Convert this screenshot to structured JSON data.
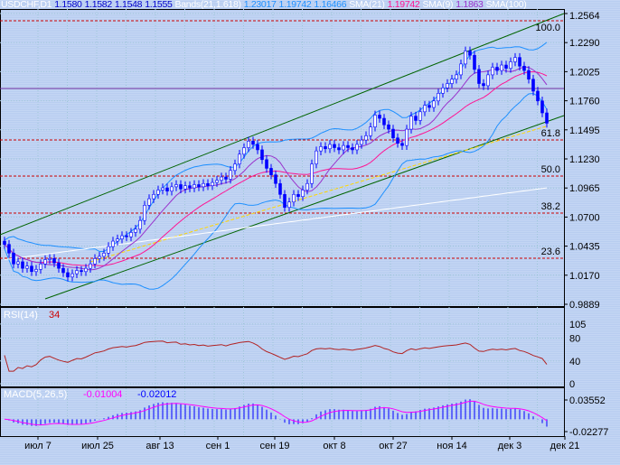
{
  "header": {
    "symbol": "USDCHF,D1",
    "open": "1.1580",
    "high": "1.1582",
    "low": "1.1548",
    "close": "1.1555",
    "bands_label": "Bands(21,1.618)",
    "bands_values": [
      "1.23017",
      "1.19742",
      "1.16466"
    ],
    "sma21_label": "SMA(21)",
    "sma21_value": "1.19742",
    "sma9_label": "SMA(9)",
    "sma9_value": "1.1863",
    "sma100_label": "SMA(100)"
  },
  "price_axis": [
    "1.2564",
    "1.2290",
    "1.2025",
    "1.1760",
    "1.1495",
    "1.1230",
    "1.0965",
    "1.0700",
    "1.0435",
    "1.0170",
    "0.9889"
  ],
  "fibo_levels": [
    "100.0",
    "61.8",
    "50.0",
    "38.2",
    "23.6"
  ],
  "rsi": {
    "label": "RSI(14)",
    "value": "34",
    "axis": [
      "105",
      "80",
      "40",
      "0"
    ]
  },
  "macd": {
    "label": "MACD(5,26,5)",
    "value1": "-0.01004",
    "value2": "-0.02012",
    "axis": [
      "0.03552",
      "-0.02277"
    ]
  },
  "x_axis": [
    "июл 7",
    "июл 25",
    "авг 13",
    "сен 1",
    "сен 19",
    "окт 8",
    "окт 27",
    "ноя 14",
    "дек 3",
    "дек 21"
  ],
  "colors": {
    "candle": "#0000ff",
    "sma21": "#ff1493",
    "sma9": "#9932cc",
    "sma100": "#ffffff",
    "bands": "#1e90ff",
    "channel": "#006400",
    "fibo": "#cc0000",
    "trend": "#ffd700",
    "rsi": "#b22222",
    "macd_signal": "#ff00ff"
  },
  "chart_data": {
    "type": "candlestick",
    "ylim": [
      0.9889,
      1.2564
    ],
    "closes": [
      1.044,
      1.036,
      1.026,
      1.028,
      1.022,
      1.024,
      1.019,
      1.021,
      1.026,
      1.03,
      1.031,
      1.027,
      1.022,
      1.018,
      1.014,
      1.017,
      1.02,
      1.019,
      1.022,
      1.026,
      1.031,
      1.033,
      1.036,
      1.042,
      1.047,
      1.049,
      1.052,
      1.051,
      1.055,
      1.058,
      1.066,
      1.08,
      1.086,
      1.09,
      1.094,
      1.096,
      1.093,
      1.097,
      1.099,
      1.095,
      1.098,
      1.096,
      1.099,
      1.097,
      1.1,
      1.098,
      1.101,
      1.103,
      1.106,
      1.104,
      1.112,
      1.118,
      1.127,
      1.133,
      1.139,
      1.136,
      1.131,
      1.122,
      1.114,
      1.108,
      1.1,
      1.09,
      1.078,
      1.083,
      1.09,
      1.088,
      1.094,
      1.1,
      1.118,
      1.13,
      1.134,
      1.132,
      1.136,
      1.133,
      1.131,
      1.135,
      1.133,
      1.131,
      1.136,
      1.14,
      1.144,
      1.152,
      1.163,
      1.16,
      1.154,
      1.15,
      1.142,
      1.137,
      1.135,
      1.15,
      1.162,
      1.158,
      1.166,
      1.172,
      1.17,
      1.176,
      1.183,
      1.188,
      1.192,
      1.196,
      1.2,
      1.21,
      1.222,
      1.218,
      1.205,
      1.192,
      1.19,
      1.2,
      1.207,
      1.204,
      1.209,
      1.206,
      1.212,
      1.216,
      1.208,
      1.204,
      1.196,
      1.185,
      1.176,
      1.165,
      1.1555
    ]
  }
}
